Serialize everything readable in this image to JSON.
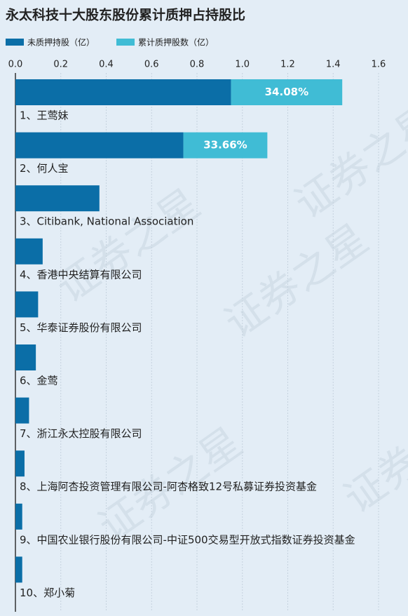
{
  "chart_data": {
    "type": "bar",
    "orientation": "horizontal",
    "stacked": true,
    "title": "永太科技十大股东股份累计质押占持股比",
    "watermark": "证券之星",
    "categories": [
      "1、王莺妹",
      "2、何人宝",
      "3、Citibank, National Association",
      "4、香港中央结算有限公司",
      "5、华泰证券股份有限公司",
      "6、金莺",
      "7、浙江永太控股有限公司",
      "8、上海阿杏投资管理有限公司-阿杏格致12号私募证券投资基金",
      "9、中国农业银行股份有限公司-中证500交易型开放式指数证券投资基金",
      "10、郑小菊"
    ],
    "series": [
      {
        "name": "未质押持股（亿）",
        "color": "#0b6ea7",
        "values": [
          0.95,
          0.74,
          0.37,
          0.12,
          0.1,
          0.09,
          0.06,
          0.04,
          0.03,
          0.03
        ]
      },
      {
        "name": "累计质押股数（亿）",
        "color": "#40bcd5",
        "values": [
          0.49,
          0.37,
          null,
          null,
          null,
          null,
          null,
          null,
          null,
          null
        ]
      }
    ],
    "pledge_ratios": {
      "values": [
        34.08,
        33.66,
        null,
        null,
        null,
        null,
        null,
        null,
        null,
        null
      ],
      "value_labels": [
        "34.08%",
        "33.66%",
        null,
        null,
        null,
        null,
        null,
        null,
        null,
        null
      ]
    },
    "xlim": [
      0,
      1.6
    ],
    "xticks": [
      {
        "value": 0,
        "label": "0.0"
      },
      0.2,
      0.4,
      0.6,
      0.8,
      {
        "value": 1,
        "label": "1.0"
      },
      1.2,
      1.4,
      1.6
    ],
    "grid": true
  }
}
